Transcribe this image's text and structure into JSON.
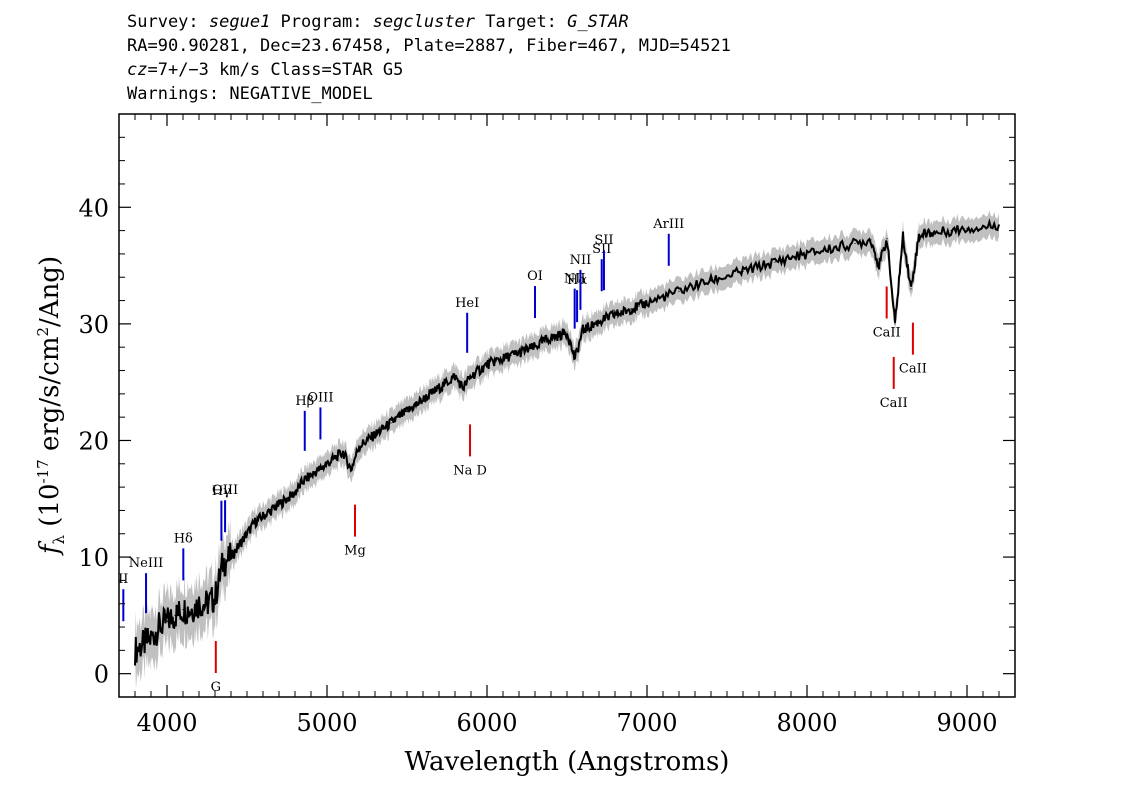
{
  "header": {
    "line1": {
      "survey_label": "Survey: ",
      "survey": "segue1",
      "program_label": " Program: ",
      "program": "segcluster",
      "target_label": " Target: ",
      "target": "G_STAR"
    },
    "line2": "RA=90.90281, Dec=23.67458, Plate=2887, Fiber=467, MJD=54521",
    "line3": {
      "cz_label": "cz",
      "cz_value": "=7+/−3",
      "cz_unit": " km/s Class=STAR G5"
    },
    "line4": "Warnings: NEGATIVE_MODEL"
  },
  "chart_data": {
    "type": "line",
    "xlabel": "Wavelength (Angstroms)",
    "ylabel": "f_λ (10^-17 erg/s/cm^2/Ang)",
    "xlim": [
      3700,
      9300
    ],
    "ylim": [
      -2,
      48
    ],
    "xticks": [
      4000,
      5000,
      6000,
      7000,
      8000,
      9000
    ],
    "yticks": [
      0,
      10,
      20,
      30,
      40
    ],
    "grid": false,
    "series": [
      {
        "color": "#000000",
        "x": [
          3800,
          3850,
          3900,
          3950,
          4000,
          4050,
          4100,
          4150,
          4200,
          4250,
          4300,
          4350,
          4400,
          4450,
          4500,
          4550,
          4600,
          4650,
          4700,
          4750,
          4800,
          4850,
          4900,
          4950,
          5000,
          5050,
          5100,
          5150,
          5200,
          5250,
          5300,
          5350,
          5400,
          5450,
          5500,
          5550,
          5600,
          5650,
          5700,
          5750,
          5800,
          5850,
          5900,
          5950,
          6000,
          6050,
          6100,
          6150,
          6200,
          6250,
          6300,
          6350,
          6400,
          6450,
          6500,
          6550,
          6600,
          6650,
          6700,
          6750,
          6800,
          6850,
          6900,
          6950,
          7000,
          7100,
          7200,
          7300,
          7400,
          7500,
          7600,
          7700,
          7800,
          7900,
          8000,
          8100,
          8200,
          8300,
          8400,
          8450,
          8500,
          8550,
          8600,
          8650,
          8700,
          8750,
          8800,
          8900,
          9000,
          9100,
          9200
        ],
        "y": [
          2.0,
          2.5,
          3.0,
          4.0,
          4.5,
          5.0,
          5.5,
          5.5,
          6.0,
          6.0,
          6.5,
          9.5,
          10.0,
          11.0,
          12.0,
          13.0,
          13.5,
          14.0,
          14.5,
          15.0,
          15.5,
          16.5,
          17.0,
          17.5,
          18.0,
          18.5,
          19.0,
          17.5,
          19.5,
          20.0,
          20.5,
          21.0,
          21.5,
          22.0,
          22.5,
          23.0,
          23.5,
          24.0,
          24.5,
          25.0,
          25.5,
          24.5,
          25.5,
          26.0,
          26.5,
          26.8,
          27.0,
          27.3,
          27.5,
          27.8,
          28.0,
          28.5,
          28.8,
          29.0,
          29.3,
          27.0,
          29.5,
          29.8,
          30.2,
          30.5,
          30.8,
          31.0,
          31.3,
          31.5,
          31.8,
          32.3,
          32.8,
          33.3,
          33.7,
          34.1,
          34.5,
          34.9,
          35.3,
          35.7,
          36.0,
          36.3,
          36.6,
          36.9,
          37.2,
          35.0,
          37.3,
          30.0,
          37.5,
          33.0,
          37.6,
          37.8,
          37.8,
          38.0,
          38.2,
          38.3,
          38.5
        ]
      }
    ],
    "emission_lines": [
      {
        "label": "II",
        "x": 3727
      },
      {
        "label": "NeIII",
        "x": 3869
      },
      {
        "label": "Hδ",
        "x": 4102
      },
      {
        "label": "Hγ",
        "x": 4340
      },
      {
        "label": "OIII",
        "x": 4363
      },
      {
        "label": "Hβ",
        "x": 4861
      },
      {
        "label": "OIII",
        "x": 4959
      },
      {
        "label": "HeI",
        "x": 5876
      },
      {
        "label": "OI",
        "x": 6300
      },
      {
        "label": "NII",
        "x": 6548
      },
      {
        "label": "Hα",
        "x": 6563
      },
      {
        "label": "NII",
        "x": 6584
      },
      {
        "label": "SII",
        "x": 6717
      },
      {
        "label": "SII",
        "x": 6731
      },
      {
        "label": "ArIII",
        "x": 7136
      }
    ],
    "absorption_lines": [
      {
        "label": "G",
        "x": 4305
      },
      {
        "label": "Mg",
        "x": 5175
      },
      {
        "label": "Na D",
        "x": 5894
      },
      {
        "label": "CaII",
        "x": 8498
      },
      {
        "label": "CaII",
        "x": 8542
      },
      {
        "label": "CaII",
        "x": 8662
      }
    ],
    "colors": {
      "spectrum": "#000000",
      "error_band": "#c0c0c0",
      "emission": "#0000cc",
      "absorption": "#dd0000"
    }
  }
}
